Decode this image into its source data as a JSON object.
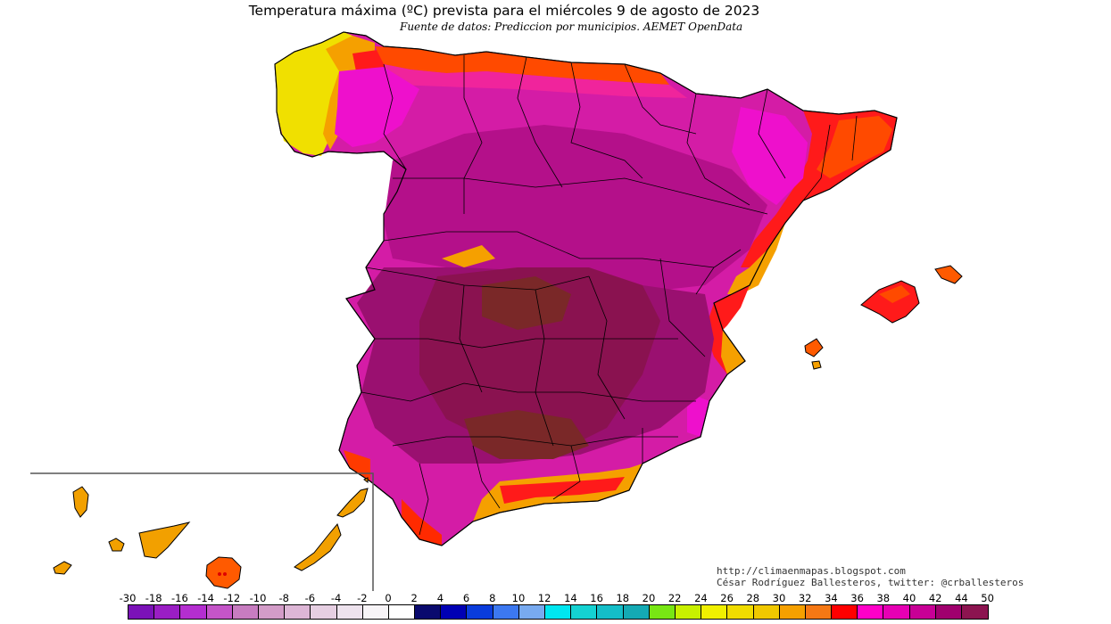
{
  "title": "Temperatura máxima (ºC) prevista para el miércoles 9 de agosto de 2023",
  "subtitle": "Fuente de datos: Prediccion por municipios. AEMET OpenData",
  "credits": {
    "blog": "http://climaenmapas.blogspot.com",
    "author": "César Rodríguez Ballesteros, twitter: @crballesteros"
  },
  "legend": {
    "ticks": [
      "-30",
      "-18",
      "-16",
      "-14",
      "-12",
      "-10",
      "-8",
      "-6",
      "-4",
      "-2",
      "0",
      "2",
      "4",
      "6",
      "8",
      "10",
      "12",
      "14",
      "16",
      "18",
      "20",
      "22",
      "24",
      "26",
      "28",
      "30",
      "32",
      "34",
      "36",
      "38",
      "40",
      "42",
      "44",
      "50"
    ],
    "colors": [
      "#7b12b8",
      "#9a1ec4",
      "#b42ed0",
      "#c455c8",
      "#c77cc0",
      "#d39cc8",
      "#ddb6d6",
      "#e6cfe2",
      "#eee3ee",
      "#f7f4f7",
      "#ffffff",
      "#0a0a6e",
      "#0000b4",
      "#0a3cdc",
      "#3c78f0",
      "#78aaf0",
      "#00e6f0",
      "#14d2d2",
      "#14bec8",
      "#14aab4",
      "#78e614",
      "#c8f000",
      "#f0f000",
      "#f0dc00",
      "#f0c800",
      "#f5a000",
      "#f57814",
      "#ff0000",
      "#ff00c8",
      "#e600b4",
      "#c80096",
      "#a0006e",
      "#8c1450"
    ],
    "palette": {
      "cool": "#f2a000",
      "warm": "#ff5a00",
      "hot": "#ff1010",
      "veryhot": "#ee10cc",
      "extreme": "#b4108a",
      "peak": "#8a1250",
      "top": "#7a2828"
    }
  },
  "regions": {
    "peninsula": "Península Ibérica",
    "balearic": "Islas Baleares",
    "canary": "Islas Canarias"
  }
}
